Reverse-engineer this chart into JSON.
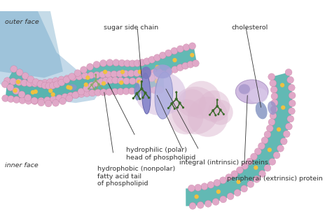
{
  "bg_color": "#ffffff",
  "membrane_teal": "#5ab5b0",
  "membrane_teal_dark": "#3a9090",
  "phospho_head_color": "#e0a8c8",
  "cholesterol_dot_color": "#f0c040",
  "protein_integral_color": "#9898d8",
  "protein_peripheral_color": "#c0a8d8",
  "protein_peripheral2": "#d8c8e8",
  "sugar_chain_color": "#3a6a2a",
  "label_color": "#333333",
  "shadow_color": "#8ab8c8",
  "labels": {
    "outer_face": "outer face",
    "inner_face": "inner face",
    "sugar_side_chain": "sugar side chain",
    "cholesterol": "cholesterol",
    "hydrophilic": "hydrophilic (polar)\nhead of phospholipid",
    "hydrophobic": "hydrophobic (nonpolar)\nfatty acid tail\nof phospholipid",
    "integral": "integral (intrinsic) proteins",
    "peripheral": "peripheral (extrinsic) protein"
  },
  "figsize": [
    4.74,
    3.16
  ],
  "dpi": 100
}
